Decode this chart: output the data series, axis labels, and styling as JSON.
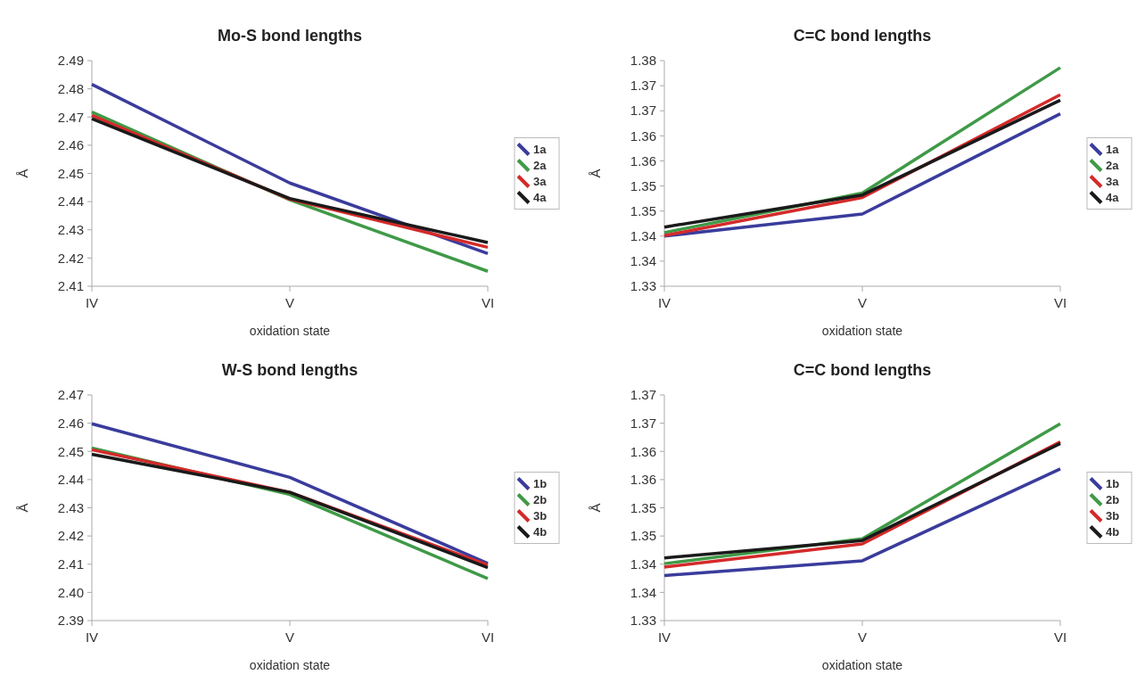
{
  "chart_data": [
    {
      "type": "line",
      "title": "Mo-S bond lengths",
      "xlabel": "oxidation state",
      "ylabel": "Å",
      "categories": [
        "IV",
        "V",
        "VI"
      ],
      "ylim": [
        2.41,
        2.49
      ],
      "yticks": [
        2.41,
        2.42,
        2.43,
        2.44,
        2.45,
        2.46,
        2.47,
        2.48,
        2.49
      ],
      "grid": false,
      "legend": "right",
      "series": [
        {
          "name": "1a",
          "color": "#3a3c9c",
          "values": [
            2.4816,
            2.4466,
            2.4216
          ]
        },
        {
          "name": "2a",
          "color": "#3f9a47",
          "values": [
            2.4718,
            2.4406,
            2.4153
          ]
        },
        {
          "name": "3a",
          "color": "#d42a2a",
          "values": [
            2.4706,
            2.4409,
            2.4238
          ]
        },
        {
          "name": "4a",
          "color": "#1a1a1a",
          "values": [
            2.4694,
            2.4411,
            2.4255
          ]
        }
      ]
    },
    {
      "type": "line",
      "title": "C=C bond lengths",
      "xlabel": "oxidation state",
      "ylabel": "Å",
      "categories": [
        "IV",
        "V",
        "VI"
      ],
      "ylim": [
        1.33,
        1.375
      ],
      "yticks": [
        1.33,
        {
          "value": 1.335,
          "label": "1.34"
        },
        1.34,
        {
          "value": 1.345,
          "label": "1.35"
        },
        1.35,
        {
          "value": 1.355,
          "label": "1.36"
        },
        1.36,
        {
          "value": 1.365,
          "label": "1.37"
        },
        1.37,
        {
          "value": 1.375,
          "label": "1.38"
        }
      ],
      "grid": false,
      "legend": "right",
      "series": [
        {
          "name": "1a",
          "color": "#3a3c9c",
          "values": [
            1.34,
            1.3444,
            1.3644
          ]
        },
        {
          "name": "2a",
          "color": "#3f9a47",
          "values": [
            1.3407,
            1.3486,
            1.3736
          ]
        },
        {
          "name": "3a",
          "color": "#d42a2a",
          "values": [
            1.3401,
            1.3477,
            1.3682
          ]
        },
        {
          "name": "4a",
          "color": "#1a1a1a",
          "values": [
            1.3418,
            1.3482,
            1.3671
          ]
        }
      ]
    },
    {
      "type": "line",
      "title": "W-S bond lengths",
      "xlabel": "oxidation state",
      "ylabel": "Å",
      "categories": [
        "IV",
        "V",
        "VI"
      ],
      "ylim": [
        2.39,
        2.47
      ],
      "yticks": [
        {
          "value": 2.39,
          "label": "2.39"
        },
        {
          "value": 2.4,
          "label": "2.40"
        },
        2.41,
        2.42,
        2.43,
        2.44,
        2.45,
        2.46,
        2.47
      ],
      "grid": false,
      "legend": "right",
      "series": [
        {
          "name": "1b",
          "color": "#3a3c9c",
          "values": [
            2.4598,
            2.4408,
            2.4103
          ]
        },
        {
          "name": "2b",
          "color": "#3f9a47",
          "values": [
            2.4512,
            2.4347,
            2.4049
          ]
        },
        {
          "name": "3b",
          "color": "#d42a2a",
          "values": [
            2.4506,
            2.4355,
            2.4097
          ]
        },
        {
          "name": "4b",
          "color": "#1a1a1a",
          "values": [
            2.449,
            2.4355,
            2.4088
          ]
        }
      ]
    },
    {
      "type": "line",
      "title": "C=C bond lengths",
      "xlabel": "oxidation state",
      "ylabel": "Å",
      "categories": [
        "IV",
        "V",
        "VI"
      ],
      "ylim": [
        1.33,
        1.37
      ],
      "yticks": [
        1.33,
        {
          "value": 1.335,
          "label": "1.34"
        },
        1.34,
        {
          "value": 1.345,
          "label": "1.35"
        },
        1.35,
        {
          "value": 1.355,
          "label": "1.36"
        },
        1.36,
        {
          "value": 1.365,
          "label": "1.37"
        },
        1.37
      ],
      "grid": false,
      "legend": "right",
      "series": [
        {
          "name": "1b",
          "color": "#3a3c9c",
          "values": [
            1.338,
            1.3406,
            1.3569
          ]
        },
        {
          "name": "2b",
          "color": "#3f9a47",
          "values": [
            1.3401,
            1.3445,
            1.3649
          ]
        },
        {
          "name": "3b",
          "color": "#d42a2a",
          "values": [
            1.3395,
            1.3436,
            1.3617
          ]
        },
        {
          "name": "4b",
          "color": "#1a1a1a",
          "values": [
            1.3411,
            1.3442,
            1.3614
          ]
        }
      ]
    }
  ]
}
